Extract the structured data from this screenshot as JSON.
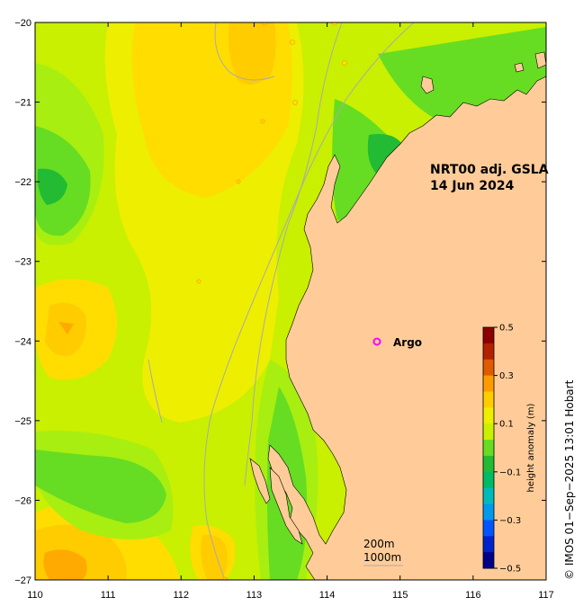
{
  "map": {
    "title_line1": "NRT00 adj. GSLA",
    "title_line2": "14 Jun 2024",
    "x_ticks": [
      "110",
      "111",
      "112",
      "113",
      "114",
      "115",
      "116",
      "117"
    ],
    "y_ticks": [
      "−20",
      "−21",
      "−22",
      "−23",
      "−24",
      "−25",
      "−26",
      "−27"
    ],
    "lon_range": [
      110,
      117
    ],
    "lat_range": [
      -27,
      -20
    ]
  },
  "legend": {
    "argo_label": "Argo",
    "argo_marker_color": "#ff00ff",
    "isobath_200": "200m",
    "isobath_1000": "1000m"
  },
  "colorbar": {
    "title": "height anomaly (m)",
    "tick_labels": [
      "0.5",
      "0.3",
      "0.1",
      "−0.1",
      "−0.3",
      "−0.5"
    ],
    "range": [
      -0.5,
      0.5
    ],
    "colors_top_to_bottom": [
      "#8b0000",
      "#b22200",
      "#e05a00",
      "#ff9a00",
      "#ffcc00",
      "#eeee00",
      "#c8f000",
      "#66dd22",
      "#22bb33",
      "#00bb66",
      "#00bbbb",
      "#0099ee",
      "#0055ff",
      "#0022cc",
      "#000088"
    ]
  },
  "credit": "© IMOS 01−Sep−2025 13:01 Hobart",
  "colors": {
    "land": "#ffcc99",
    "ocean_base": "#c8f000",
    "warm_anomaly": "#ffcc00",
    "cool_anomaly": "#66dd22"
  }
}
